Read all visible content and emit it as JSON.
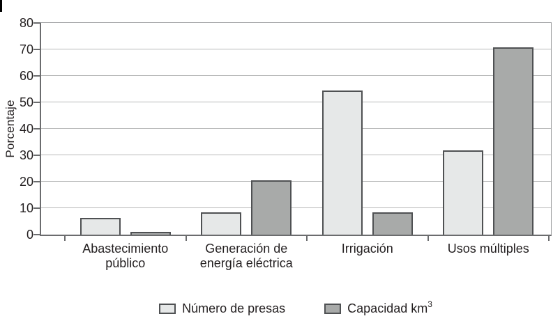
{
  "page": {
    "background": "#ffffff"
  },
  "y_axis": {
    "title": "Porcentaje"
  },
  "legend": {
    "items": [
      {
        "label": "Número de presas",
        "color": "#e6e8e8"
      },
      {
        "label_base": "Capacidad km",
        "label_sup": "3",
        "color": "#a8aaa9"
      }
    ]
  },
  "colors": {
    "bar_light": "#e6e8e8",
    "bar_dark": "#a8aaa9",
    "bar_border": "#4f5153",
    "axis": "#6b6c6e",
    "gridline": "#b7b8b8",
    "plot_border": "#9b9c9e",
    "text": "#231f20",
    "corner_mark": "#000000"
  },
  "chart_data": {
    "type": "bar",
    "title": "",
    "xlabel": "",
    "ylabel": "Porcentaje",
    "ylim": [
      0,
      80
    ],
    "ytick_step": 10,
    "yticks": [
      0,
      10,
      20,
      30,
      40,
      50,
      60,
      70,
      80
    ],
    "grid": true,
    "legend_position": "bottom",
    "categories": [
      "Abastecimiento público",
      "Generación de energía eléctrica",
      "Irrigación",
      "Usos múltiples"
    ],
    "category_label_lines": [
      [
        "Abastecimiento",
        "público"
      ],
      [
        "Generación de",
        "energía eléctrica"
      ],
      [
        "Irrigación"
      ],
      [
        "Usos múltiples"
      ]
    ],
    "series": [
      {
        "name": "Número de presas",
        "color": "#e6e8e8",
        "values": [
          6.3,
          8.3,
          54.5,
          31.8
        ]
      },
      {
        "name": "Capacidad km³",
        "color": "#a8aaa9",
        "values": [
          1.0,
          20.5,
          8.3,
          70.8
        ]
      }
    ]
  }
}
